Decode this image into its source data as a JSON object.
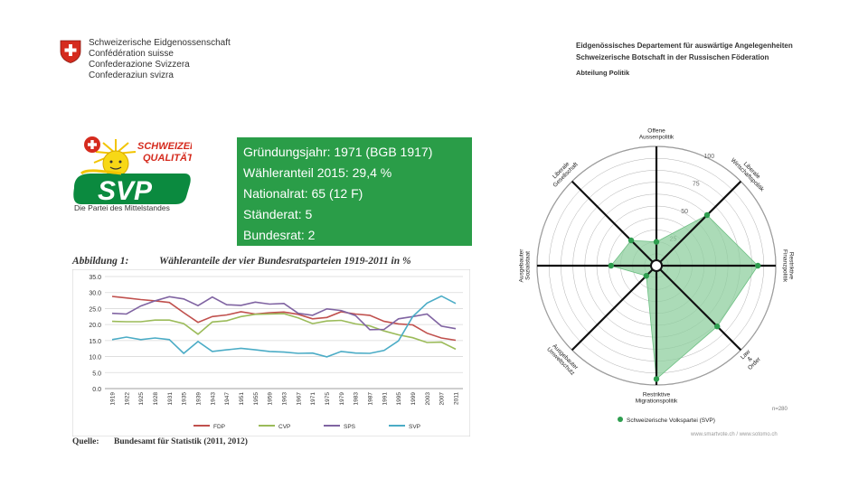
{
  "header": {
    "confederation_lines": [
      "Schweizerische Eidgenossenschaft",
      "Confédération suisse",
      "Confederazione Svizzera",
      "Confederaziun svizra"
    ],
    "department": "Eidgenössisches Departement für auswärtige Angelegenheiten",
    "embassy": "Schweizerische Botschaft in der Russischen Föderation",
    "division": "Abteilung Politik"
  },
  "logo": {
    "badge": "SCHWEIZER QUALITÄT",
    "wordmark": "SVP",
    "tagline": "Die Partei des Mittelstandes"
  },
  "info_box": {
    "lines": [
      "Gründungsjahr: 1971 (BGB 1917)",
      "Wähleranteil 2015: 29,4 %",
      "Nationalrat: 65 (12 F)",
      "Ständerat: 5",
      "Bundesrat: 2"
    ]
  },
  "figure": {
    "label": "Abbildung 1:",
    "title": "Wähleranteile der vier Bundesratsparteien 1919-2011 in %",
    "source_label": "Quelle:",
    "source_text": "Bundesamt für Statistik (2011, 2012)"
  },
  "colors": {
    "fdp": "#c0504d",
    "cvp": "#9bbb59",
    "sps": "#8064a2",
    "svp": "#4bacc6",
    "box_green": "#2a9d48",
    "radar_fill": "#8fcf9f",
    "radar_point": "#2e9e4f"
  },
  "chart_data": [
    {
      "type": "line",
      "title": "Wähleranteile der vier Bundesratsparteien 1919-2011 in %",
      "categories": [
        "1919",
        "1922",
        "1925",
        "1928",
        "1931",
        "1935",
        "1939",
        "1943",
        "1947",
        "1951",
        "1955",
        "1959",
        "1963",
        "1967",
        "1971",
        "1975",
        "1979",
        "1983",
        "1987",
        "1991",
        "1995",
        "1999",
        "2003",
        "2007",
        "2011"
      ],
      "ylim": [
        0,
        35
      ],
      "yticks": [
        "0.0",
        "5.0",
        "10.0",
        "15.0",
        "20.0",
        "25.0",
        "30.0",
        "35.0"
      ],
      "grid": true,
      "legend": "bottom",
      "series": [
        {
          "name": "FDP",
          "color_key": "fdp",
          "values": [
            28.8,
            28.3,
            27.8,
            27.4,
            26.9,
            23.7,
            20.7,
            22.5,
            23.0,
            24.0,
            23.3,
            23.7,
            23.9,
            23.2,
            21.8,
            22.2,
            24.0,
            23.3,
            22.9,
            21.0,
            20.2,
            19.9,
            17.3,
            15.8,
            15.1
          ]
        },
        {
          "name": "CVP",
          "color_key": "cvp",
          "values": [
            21.0,
            20.9,
            20.9,
            21.4,
            21.4,
            20.3,
            17.0,
            20.8,
            21.2,
            22.5,
            23.2,
            23.3,
            23.4,
            22.1,
            20.3,
            21.1,
            21.3,
            20.2,
            19.6,
            18.0,
            16.8,
            15.9,
            14.4,
            14.5,
            12.3
          ]
        },
        {
          "name": "SPS",
          "color_key": "sps",
          "values": [
            23.5,
            23.3,
            25.8,
            27.4,
            28.7,
            28.0,
            25.9,
            28.6,
            26.2,
            26.0,
            27.0,
            26.4,
            26.6,
            23.5,
            22.9,
            24.9,
            24.4,
            22.8,
            18.4,
            18.5,
            21.8,
            22.5,
            23.3,
            19.5,
            18.7
          ]
        },
        {
          "name": "SVP",
          "color_key": "svp",
          "values": [
            15.3,
            16.1,
            15.3,
            15.8,
            15.3,
            11.0,
            14.7,
            11.6,
            12.1,
            12.6,
            12.1,
            11.6,
            11.4,
            11.0,
            11.1,
            9.9,
            11.6,
            11.1,
            11.0,
            11.9,
            14.9,
            22.5,
            26.7,
            28.9,
            26.6
          ]
        }
      ]
    },
    {
      "type": "radar",
      "title": "",
      "rings": [
        25,
        50,
        75,
        100
      ],
      "ring_labels": [
        "25",
        "50",
        "75",
        "100"
      ],
      "axes": [
        {
          "label": "Offene Aussenpolitik",
          "value": 20
        },
        {
          "label": "Liberale Wirtschaftspolitik",
          "value": 60
        },
        {
          "label": "Restriktive Finanzpolitik",
          "value": 85
        },
        {
          "label": "Law & Order",
          "value": 72
        },
        {
          "label": "Restriktive Migrationspolitik",
          "value": 95
        },
        {
          "label": "Ausgebauter Umweltschutz",
          "value": 12
        },
        {
          "label": "Ausgebauter Sozialstaat",
          "value": 38
        },
        {
          "label": "Liberale Gesellschaft",
          "value": 30
        }
      ],
      "legend": "Schweizerische Volkspartei (SVP)",
      "note": "n=280",
      "credit": "www.smartvote.ch / www.sotomo.ch"
    }
  ]
}
